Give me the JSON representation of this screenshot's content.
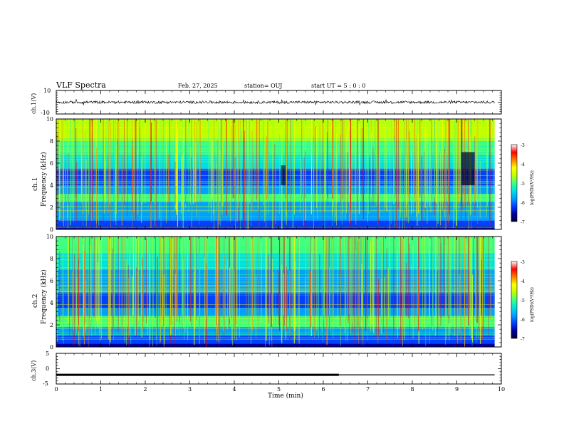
{
  "header": {
    "title": "VLF Spectra",
    "date": "Feb. 27, 2025",
    "station": "station= OUJ",
    "start": "start  UT =   5  : 0  : 0"
  },
  "colors": {
    "colormap": [
      "#000032",
      "#0000a0",
      "#0040ff",
      "#00a0ff",
      "#00e0e0",
      "#40ff80",
      "#c0ff00",
      "#ffff00",
      "#ff8000",
      "#ff0000",
      "#ffffff"
    ],
    "trace": "#000000"
  },
  "chart_data": [
    {
      "type": "line",
      "ylabel": "ch.1(V)",
      "ylim": [
        -10,
        10
      ],
      "yticks": [
        "10",
        "-10"
      ],
      "xlim": [
        0,
        10
      ],
      "series": [
        {
          "description": "noisy waveform centred near 0 V, amplitude about ±1.5 V"
        }
      ]
    },
    {
      "type": "heatmap",
      "ylabel_ch": "ch.1",
      "ylabel": "Frequency (kHz)",
      "ylim": [
        0,
        10
      ],
      "yticks": [
        "0",
        "2",
        "4",
        "6",
        "8",
        "10"
      ],
      "xlim": [
        0,
        9.85
      ],
      "colorbar": {
        "label": "log(PSD)(V²/Hz)",
        "range": [
          -7,
          -3
        ],
        "ticks": [
          "-3",
          "-4",
          "-5",
          "-6",
          "-7"
        ]
      }
    },
    {
      "type": "heatmap",
      "ylabel_ch": "ch.2",
      "ylabel": "Frequency (kHz)",
      "ylim": [
        0,
        10
      ],
      "yticks": [
        "0",
        "2",
        "4",
        "6",
        "8",
        "10"
      ],
      "xlim": [
        0,
        9.85
      ],
      "colorbar": {
        "label": "log(PSD)(V²/Hz)",
        "range": [
          -7,
          -3
        ],
        "ticks": [
          "-3",
          "-4",
          "-5",
          "-6",
          "-7"
        ]
      }
    },
    {
      "type": "line",
      "ylabel": "ch.3(V)",
      "ylim": [
        -5,
        5
      ],
      "yticks": [
        "5",
        "0",
        "-5"
      ],
      "xlim": [
        0,
        10
      ],
      "xlabel": "Time (min)",
      "xticks": [
        "0",
        "1",
        "2",
        "3",
        "4",
        "5",
        "6",
        "7",
        "8",
        "9",
        "10"
      ],
      "series": [
        {
          "x": [
            0,
            6.35
          ],
          "y": [
            -2,
            -2
          ],
          "style": "thick"
        },
        {
          "x": [
            6.35,
            9.85
          ],
          "y": [
            -2,
            -2
          ],
          "style": "thin"
        }
      ]
    }
  ]
}
